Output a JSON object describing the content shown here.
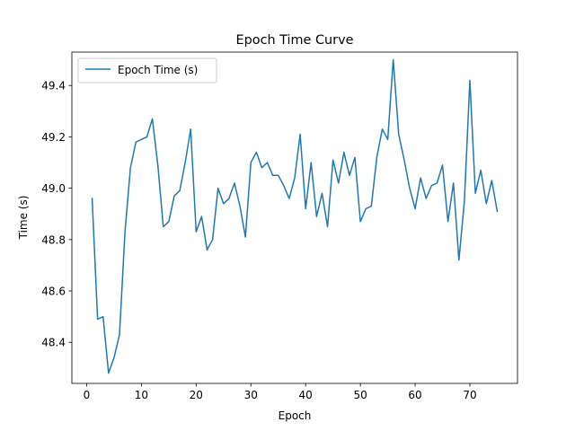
{
  "chart_data": {
    "type": "line",
    "title": "Epoch Time Curve",
    "xlabel": "Epoch",
    "ylabel": "Time (s)",
    "xlim": [
      -2.7,
      78.7
    ],
    "ylim": [
      48.24,
      49.53
    ],
    "xticks": [
      0,
      10,
      20,
      30,
      40,
      50,
      60,
      70
    ],
    "yticks": [
      48.4,
      48.6,
      48.8,
      49.0,
      49.2,
      49.4
    ],
    "ytick_labels": [
      "48.4",
      "48.6",
      "48.8",
      "49.0",
      "49.2",
      "49.4"
    ],
    "grid": false,
    "legend": "upper left",
    "color": "#1f77b4",
    "series": [
      {
        "name": "Epoch Time (s)",
        "x": [
          1,
          2,
          3,
          4,
          5,
          6,
          7,
          8,
          9,
          10,
          11,
          12,
          13,
          14,
          15,
          16,
          17,
          18,
          19,
          20,
          21,
          22,
          23,
          24,
          25,
          26,
          27,
          28,
          29,
          30,
          31,
          32,
          33,
          34,
          35,
          36,
          37,
          38,
          39,
          40,
          41,
          42,
          43,
          44,
          45,
          46,
          47,
          48,
          49,
          50,
          51,
          52,
          53,
          54,
          55,
          56,
          57,
          58,
          59,
          60,
          61,
          62,
          63,
          64,
          65,
          66,
          67,
          68,
          69,
          70,
          71,
          72,
          73,
          74,
          75
        ],
        "y": [
          48.96,
          48.49,
          48.5,
          48.28,
          48.34,
          48.43,
          48.83,
          49.08,
          49.18,
          49.19,
          49.2,
          49.27,
          49.09,
          48.85,
          48.87,
          48.97,
          48.99,
          49.1,
          49.23,
          48.83,
          48.89,
          48.76,
          48.8,
          49.0,
          48.94,
          48.96,
          49.02,
          48.93,
          48.81,
          49.1,
          49.14,
          49.08,
          49.1,
          49.05,
          49.05,
          49.01,
          48.96,
          49.04,
          49.21,
          48.92,
          49.1,
          48.89,
          48.98,
          48.85,
          49.11,
          49.02,
          49.14,
          49.05,
          49.12,
          48.87,
          48.92,
          48.93,
          49.12,
          49.23,
          49.19,
          49.5,
          49.21,
          49.11,
          49.0,
          48.92,
          49.04,
          48.96,
          49.01,
          49.02,
          49.09,
          48.87,
          49.02,
          48.72,
          48.95,
          49.42,
          48.98,
          49.07,
          48.94,
          49.03,
          48.91
        ]
      }
    ]
  }
}
